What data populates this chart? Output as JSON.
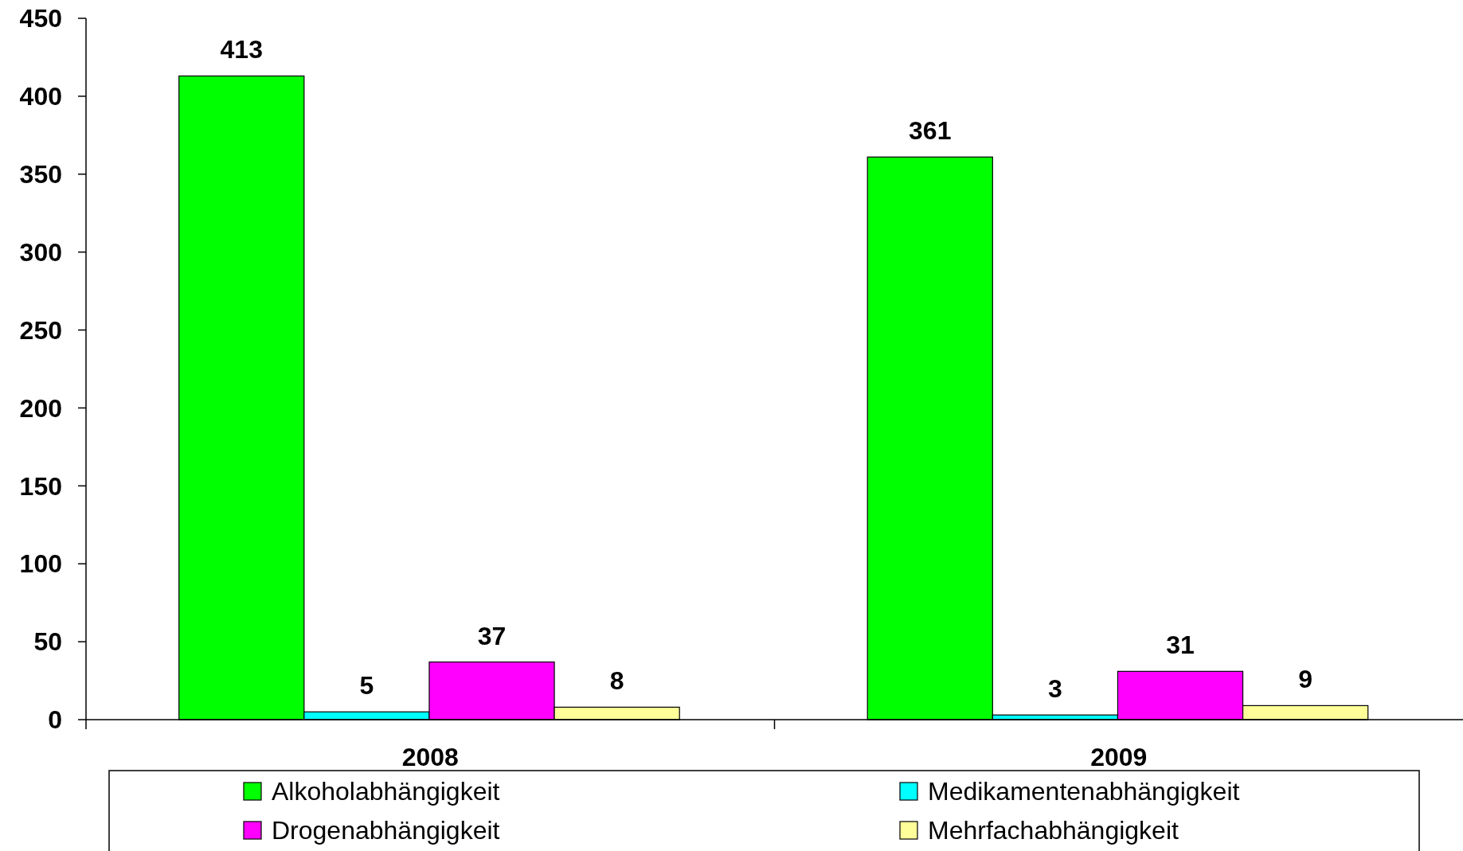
{
  "chart_data": {
    "type": "bar",
    "categories": [
      "2008",
      "2009"
    ],
    "series": [
      {
        "name": "Alkoholabhängigkeit",
        "color": "#00ff00",
        "values": [
          413,
          361
        ]
      },
      {
        "name": "Medikamentenabhängigkeit",
        "color": "#00ffff",
        "values": [
          5,
          3
        ]
      },
      {
        "name": "Drogenabhängigkeit",
        "color": "#ff00ff",
        "values": [
          37,
          31
        ]
      },
      {
        "name": "Mehrfachabhängigkeit",
        "color": "#ffff99",
        "values": [
          8,
          9
        ]
      }
    ],
    "ylim": [
      0,
      450
    ],
    "yticks": [
      0,
      50,
      100,
      150,
      200,
      250,
      300,
      350,
      400,
      450
    ],
    "grid": false,
    "legend": "bottom",
    "data_labels": true
  }
}
